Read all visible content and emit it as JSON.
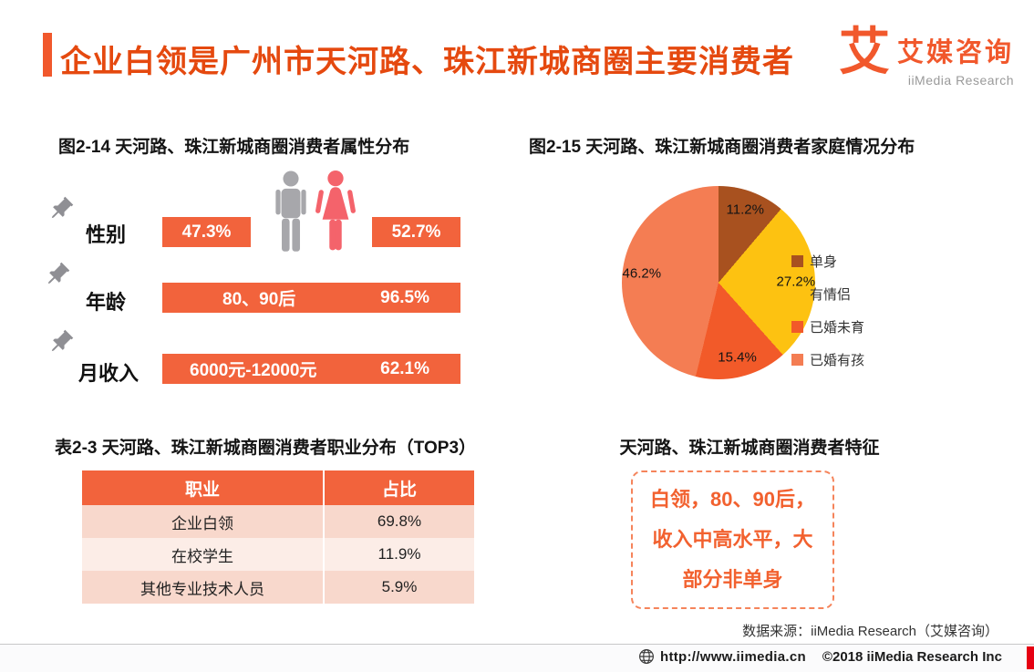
{
  "header": {
    "title": "企业白领是广州市天河路、珠江新城商圈主要消费者",
    "logo_glyph": "艾",
    "brand": "艾媒咨询",
    "brand_en": "iiMedia Research"
  },
  "colors": {
    "accent": "#F1582C",
    "title_text": "#E5490F",
    "bar": "#F2633C",
    "feature_text": "#F2612F",
    "male_icon": "#A7A7AB",
    "female_icon": "#F4636B",
    "footer_mark": "#E60012"
  },
  "features": {
    "title": "天河路、珠江新城商圈消费者特征",
    "text": "白领，80、90后，收入中高水平，大部分非单身"
  },
  "source": "数据来源：iiMedia Research（艾媒咨询）",
  "footer": {
    "url": "http://www.iimedia.cn",
    "copyright": "©2018  iiMedia Research Inc"
  },
  "chart_data": [
    {
      "type": "bar",
      "title": "图2-14 天河路、珠江新城商圈消费者属性分布",
      "bar_color": "#F2633C",
      "series": [
        {
          "category": "性别",
          "name": "男",
          "value": 47.3,
          "label": "47.3%"
        },
        {
          "category": "性别",
          "name": "女",
          "value": 52.7,
          "label": "52.7%"
        },
        {
          "category": "年龄",
          "name": "80、90后",
          "value": 96.5,
          "label": "96.5%"
        },
        {
          "category": "月收入",
          "name": "6000元-12000元",
          "value": 62.1,
          "label": "62.1%"
        }
      ]
    },
    {
      "type": "pie",
      "title": "图2-15 天河路、珠江新城商圈消费者家庭情况分布",
      "categories": [
        "单身",
        "有情侣",
        "已婚未育",
        "已婚有孩"
      ],
      "values": [
        11.2,
        27.2,
        15.4,
        46.2
      ],
      "labels": [
        "11.2%",
        "27.2%",
        "15.4%",
        "46.2%"
      ],
      "colors": [
        "#A8511F",
        "#FDC211",
        "#F25A29",
        "#F47D53"
      ],
      "legend_position": "right",
      "start_angle_deg": 0,
      "direction": "clockwise"
    },
    {
      "type": "table",
      "title": "表2-3 天河路、珠江新城商圈消费者职业分布（TOP3）",
      "columns": [
        "职业",
        "占比"
      ],
      "rows": [
        [
          "企业白领",
          "69.8%"
        ],
        [
          "在校学生",
          "11.9%"
        ],
        [
          "其他专业技术人员",
          "5.9%"
        ]
      ]
    }
  ]
}
